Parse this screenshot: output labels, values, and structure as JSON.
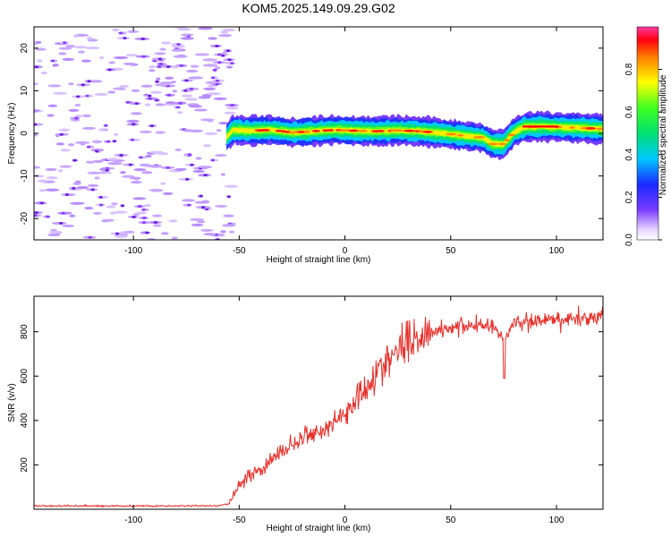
{
  "figure": {
    "title": "KOM5.2025.149.09.29.G02"
  },
  "chart_data": [
    {
      "type": "heatmap",
      "xlabel": "Height of straight line (km)",
      "ylabel": "Frequency (Hz)",
      "xlim": [
        -147,
        122
      ],
      "ylim": [
        -25,
        25
      ],
      "xticks": [
        -100,
        -50,
        0,
        50,
        100
      ],
      "yticks": [
        -20,
        -10,
        0,
        10,
        20
      ],
      "colorbar": {
        "label": "Normalized spectral amplitude",
        "range": [
          0,
          1
        ],
        "ticks": [
          0.0,
          0.2,
          0.4,
          0.6,
          0.8
        ],
        "colormap": "rainbow"
      },
      "signal_onset_km": -55,
      "ridge_centre_hz": {
        "x": [
          -57,
          -53,
          -45,
          -35,
          -25,
          -15,
          -5,
          5,
          15,
          25,
          35,
          45,
          55,
          65,
          70,
          75,
          80,
          85,
          95,
          105,
          115,
          122
        ],
        "y": [
          -1.5,
          0.8,
          0.6,
          0.8,
          0.2,
          0.5,
          0.8,
          0.6,
          0.5,
          0.7,
          0.5,
          0.1,
          -0.5,
          -1,
          -2.5,
          -2.5,
          0.3,
          1.5,
          1.6,
          1.4,
          1.2,
          1.0
        ]
      },
      "grid": false
    },
    {
      "type": "line",
      "xlabel": "Height of straight line (km)",
      "ylabel": "SNR (v/v)",
      "xlim": [
        -147,
        122
      ],
      "ylim": [
        0,
        960
      ],
      "xticks": [
        -100,
        -50,
        0,
        50,
        100
      ],
      "yticks": [
        200,
        400,
        600,
        800
      ],
      "series_color": "#e8302b",
      "trend": {
        "x": [
          -147,
          -60,
          -55,
          -50,
          -45,
          -40,
          -30,
          -20,
          -10,
          0,
          10,
          20,
          30,
          40,
          50,
          60,
          70,
          75,
          80,
          90,
          100,
          110,
          122
        ],
        "y": [
          15,
          15,
          25,
          110,
          160,
          175,
          260,
          320,
          360,
          430,
          560,
          660,
          760,
          800,
          820,
          830,
          830,
          760,
          840,
          850,
          845,
          860,
          870
        ]
      },
      "grid": false
    }
  ]
}
